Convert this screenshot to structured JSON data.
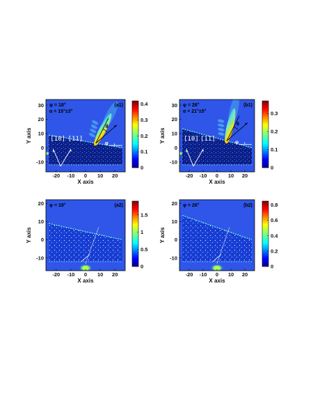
{
  "colors": {
    "field": "#2f56e8",
    "wedge": "#0c1f86",
    "edge_hot": "#6cf0d8"
  },
  "chart_data": [
    {
      "type": "heatmap",
      "panel": "(a1)",
      "xlabel": "X axis",
      "ylabel": "Y axis",
      "xlim": [
        -27,
        27
      ],
      "ylim": [
        -17,
        34
      ],
      "xticks": [
        -20,
        -10,
        0,
        10,
        20
      ],
      "yticks": [
        -10,
        0,
        10,
        20,
        30
      ],
      "annotations": [
        "φ = 18°",
        "α = 15°±3°",
        "θ",
        "φ",
        "[10]",
        "[11]"
      ],
      "colorbar": {
        "min": 0,
        "max": 0.42,
        "ticks": [
          0,
          0.1,
          0.2,
          0.3,
          0.4
        ]
      },
      "wedge_angle_deg": 18,
      "emission_angle_deg": 15
    },
    {
      "type": "heatmap",
      "panel": "(b1)",
      "xlabel": "X axis",
      "ylabel": "Y axis",
      "xlim": [
        -27,
        27
      ],
      "ylim": [
        -17,
        34
      ],
      "xticks": [
        -20,
        -10,
        0,
        10,
        20
      ],
      "yticks": [
        -10,
        0,
        10,
        20,
        30
      ],
      "annotations": [
        "φ = 26°",
        "α = 21°±5°",
        "θ",
        "φ",
        "[10]",
        "[11]"
      ],
      "colorbar": {
        "min": 0,
        "max": 0.37,
        "ticks": [
          0,
          0.1,
          0.2,
          0.3
        ]
      },
      "wedge_angle_deg": 26,
      "emission_angle_deg": 21
    },
    {
      "type": "heatmap",
      "panel": "(a2)",
      "xlabel": "X axis",
      "ylabel": "Y axis",
      "xlim": [
        -27,
        27
      ],
      "ylim": [
        -17,
        22
      ],
      "xticks": [
        -20,
        -10,
        0,
        10,
        20
      ],
      "yticks": [
        -10,
        0,
        10,
        20
      ],
      "annotations": [
        "φ = 18°"
      ],
      "colorbar": {
        "min": 0,
        "max": 1.9,
        "ticks": [
          0,
          0.5,
          1,
          1.5
        ]
      },
      "wedge_angle_deg": 18
    },
    {
      "type": "heatmap",
      "panel": "(b2)",
      "xlabel": "X axis",
      "ylabel": "Y axis",
      "xlim": [
        -27,
        27
      ],
      "ylim": [
        -17,
        22
      ],
      "xticks": [
        -20,
        -10,
        0,
        10,
        20
      ],
      "yticks": [
        -10,
        0,
        10,
        20
      ],
      "annotations": [
        "φ = 26°"
      ],
      "colorbar": {
        "min": 0,
        "max": 0.85,
        "ticks": [
          0,
          0.2,
          0.4,
          0.6,
          0.8
        ]
      },
      "wedge_angle_deg": 26
    }
  ]
}
